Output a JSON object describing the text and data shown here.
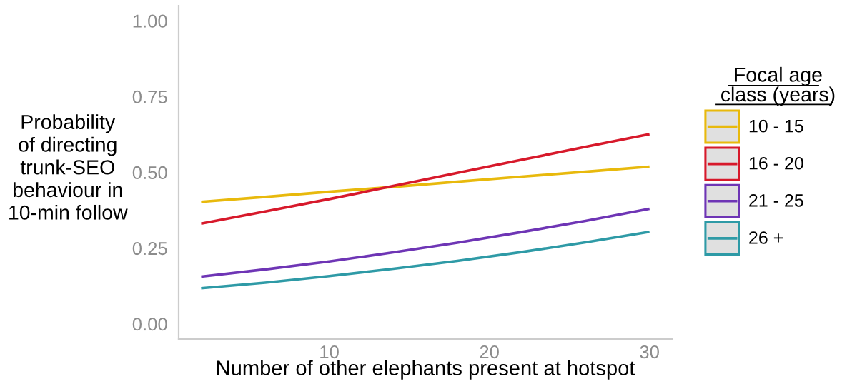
{
  "chart_data": {
    "type": "line",
    "xlabel": "Number of other elephants present at hotspot",
    "ylabel": "Probability\nof directing\ntrunk-SEO\nbehaviour in\n10-min follow",
    "legend_title": "Focal age\nclass (years)",
    "legend": "right",
    "x": [
      2,
      6,
      10,
      14,
      18,
      22,
      26,
      30
    ],
    "series": [
      {
        "name": "10 - 15",
        "color": "#e8b90c",
        "values": [
          0.403,
          0.419,
          0.436,
          0.452,
          0.469,
          0.486,
          0.502,
          0.519
        ]
      },
      {
        "name": "16 - 20",
        "color": "#d7192b",
        "values": [
          0.331,
          0.371,
          0.412,
          0.455,
          0.498,
          0.541,
          0.584,
          0.626
        ]
      },
      {
        "name": "21 - 25",
        "color": "#6e35b5",
        "values": [
          0.156,
          0.18,
          0.206,
          0.236,
          0.268,
          0.303,
          0.34,
          0.38
        ]
      },
      {
        "name": "26 +",
        "color": "#2e9aa6",
        "values": [
          0.118,
          0.136,
          0.158,
          0.182,
          0.208,
          0.237,
          0.269,
          0.304
        ]
      }
    ],
    "xlim": [
      0.6,
      31.4
    ],
    "xticks": [
      10,
      20,
      30
    ],
    "ylim": [
      -0.05,
      1.05
    ],
    "yticks": [
      {
        "value": 0,
        "label": "0.00"
      },
      {
        "value": 0.25,
        "label": "0.25"
      },
      {
        "value": 0.5,
        "label": "0.50"
      },
      {
        "value": 0.75,
        "label": "0.75"
      },
      {
        "value": 1,
        "label": "1.00"
      }
    ]
  }
}
